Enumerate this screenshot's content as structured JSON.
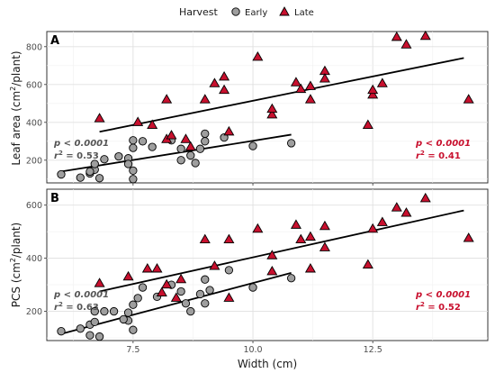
{
  "legend": {
    "title": "Harvest",
    "items": [
      {
        "label": "Early",
        "color": "#9e9e9e",
        "shape": "circle"
      },
      {
        "label": "Late",
        "color": "#c8102e",
        "shape": "triangle"
      }
    ]
  },
  "colors": {
    "early_stat": "#555555",
    "late_stat": "#c8102e"
  },
  "xlabel": "Width (cm)",
  "chart_data": [
    {
      "type": "scatter",
      "panel": "A",
      "ylabel": "Leaf area (cm²/plant)",
      "ylabel_parts": {
        "pre": "Leaf area  (cm",
        "sup": "2",
        "post": "/plant)"
      },
      "xlim": [
        5.7,
        14.9
      ],
      "ylim": [
        80,
        880
      ],
      "xticks": [
        "7.5",
        "10.0",
        "12.5"
      ],
      "xtick_values": [
        7.5,
        10.0,
        12.5
      ],
      "yticks": [
        "200",
        "400",
        "600",
        "800"
      ],
      "ytick_values": [
        200,
        400,
        600,
        800
      ],
      "grid": true,
      "series": [
        {
          "name": "Early",
          "points": [
            [
              6.0,
              125
            ],
            [
              6.4,
              108
            ],
            [
              6.6,
              130
            ],
            [
              6.7,
              150
            ],
            [
              6.7,
              180
            ],
            [
              6.6,
              140
            ],
            [
              6.9,
              205
            ],
            [
              6.8,
              105
            ],
            [
              7.2,
              220
            ],
            [
              7.4,
              210
            ],
            [
              7.4,
              180
            ],
            [
              7.5,
              145
            ],
            [
              7.5,
              100
            ],
            [
              7.5,
              305
            ],
            [
              7.5,
              265
            ],
            [
              7.7,
              300
            ],
            [
              7.9,
              270
            ],
            [
              8.3,
              305
            ],
            [
              8.5,
              260
            ],
            [
              8.5,
              200
            ],
            [
              8.7,
              225
            ],
            [
              8.8,
              185
            ],
            [
              8.9,
              260
            ],
            [
              9.0,
              340
            ],
            [
              9.0,
              300
            ],
            [
              9.4,
              320
            ],
            [
              10.0,
              275
            ],
            [
              10.8,
              290
            ]
          ],
          "trend": {
            "x": [
              6.0,
              10.8
            ],
            "y": [
              140,
              335
            ]
          },
          "stat_p": "p < 0.0001",
          "stat_r2": "0.53"
        },
        {
          "name": "Late",
          "points": [
            [
              6.8,
              420
            ],
            [
              7.6,
              400
            ],
            [
              7.9,
              385
            ],
            [
              8.2,
              520
            ],
            [
              8.2,
              310
            ],
            [
              8.3,
              330
            ],
            [
              8.6,
              310
            ],
            [
              8.7,
              270
            ],
            [
              9.0,
              520
            ],
            [
              9.2,
              605
            ],
            [
              9.4,
              640
            ],
            [
              9.4,
              570
            ],
            [
              9.5,
              350
            ],
            [
              10.1,
              745
            ],
            [
              10.4,
              440
            ],
            [
              10.4,
              470
            ],
            [
              10.9,
              610
            ],
            [
              11.0,
              575
            ],
            [
              11.2,
              590
            ],
            [
              11.2,
              520
            ],
            [
              11.5,
              670
            ],
            [
              11.5,
              630
            ],
            [
              12.4,
              385
            ],
            [
              12.5,
              545
            ],
            [
              12.5,
              570
            ],
            [
              12.7,
              605
            ],
            [
              13.0,
              850
            ],
            [
              13.2,
              810
            ],
            [
              13.6,
              855
            ],
            [
              14.5,
              520
            ]
          ],
          "trend": {
            "x": [
              6.8,
              14.4
            ],
            "y": [
              350,
              740
            ]
          },
          "stat_p": "p < 0.0001",
          "stat_r2": "0.41"
        }
      ]
    },
    {
      "type": "scatter",
      "panel": "B",
      "ylabel": "PCS (cm²/plant)",
      "ylabel_parts": {
        "pre": "PCS  (cm",
        "sup": "2",
        "post": "/plant)"
      },
      "xlim": [
        5.7,
        14.9
      ],
      "ylim": [
        90,
        660
      ],
      "xticks": [
        "7.5",
        "10.0",
        "12.5"
      ],
      "xtick_values": [
        7.5,
        10.0,
        12.5
      ],
      "yticks": [
        "200",
        "400",
        "600"
      ],
      "ytick_values": [
        200,
        400,
        600
      ],
      "grid": true,
      "series": [
        {
          "name": "Early",
          "points": [
            [
              6.0,
              125
            ],
            [
              6.4,
              135
            ],
            [
              6.6,
              150
            ],
            [
              6.6,
              110
            ],
            [
              6.7,
              160
            ],
            [
              6.7,
              200
            ],
            [
              6.9,
              200
            ],
            [
              6.8,
              105
            ],
            [
              7.1,
              200
            ],
            [
              7.4,
              195
            ],
            [
              7.4,
              165
            ],
            [
              7.5,
              130
            ],
            [
              7.5,
              225
            ],
            [
              7.6,
              250
            ],
            [
              7.7,
              290
            ],
            [
              8.0,
              255
            ],
            [
              8.3,
              300
            ],
            [
              8.5,
              275
            ],
            [
              8.6,
              230
            ],
            [
              8.7,
              200
            ],
            [
              8.9,
              265
            ],
            [
              9.0,
              230
            ],
            [
              9.0,
              320
            ],
            [
              9.1,
              280
            ],
            [
              9.5,
              355
            ],
            [
              10.0,
              290
            ],
            [
              10.8,
              325
            ],
            [
              7.3,
              170
            ]
          ],
          "trend": {
            "x": [
              6.0,
              10.8
            ],
            "y": [
              115,
              345
            ]
          },
          "stat_p": "p < 0.0001",
          "stat_r2": "0.63"
        },
        {
          "name": "Late",
          "points": [
            [
              6.8,
              305
            ],
            [
              7.4,
              330
            ],
            [
              7.8,
              360
            ],
            [
              8.0,
              360
            ],
            [
              8.1,
              270
            ],
            [
              8.2,
              300
            ],
            [
              8.4,
              250
            ],
            [
              8.5,
              320
            ],
            [
              9.0,
              470
            ],
            [
              9.2,
              370
            ],
            [
              9.5,
              470
            ],
            [
              9.5,
              250
            ],
            [
              10.1,
              510
            ],
            [
              10.4,
              410
            ],
            [
              10.4,
              350
            ],
            [
              10.9,
              525
            ],
            [
              11.0,
              470
            ],
            [
              11.2,
              480
            ],
            [
              11.2,
              360
            ],
            [
              11.5,
              520
            ],
            [
              11.5,
              440
            ],
            [
              12.4,
              375
            ],
            [
              12.5,
              510
            ],
            [
              12.7,
              535
            ],
            [
              13.0,
              590
            ],
            [
              13.2,
              570
            ],
            [
              13.6,
              625
            ],
            [
              14.5,
              475
            ]
          ],
          "trend": {
            "x": [
              6.8,
              14.4
            ],
            "y": [
              275,
              580
            ]
          },
          "stat_p": "p < 0.0001",
          "stat_r2": "0.52"
        }
      ]
    }
  ]
}
